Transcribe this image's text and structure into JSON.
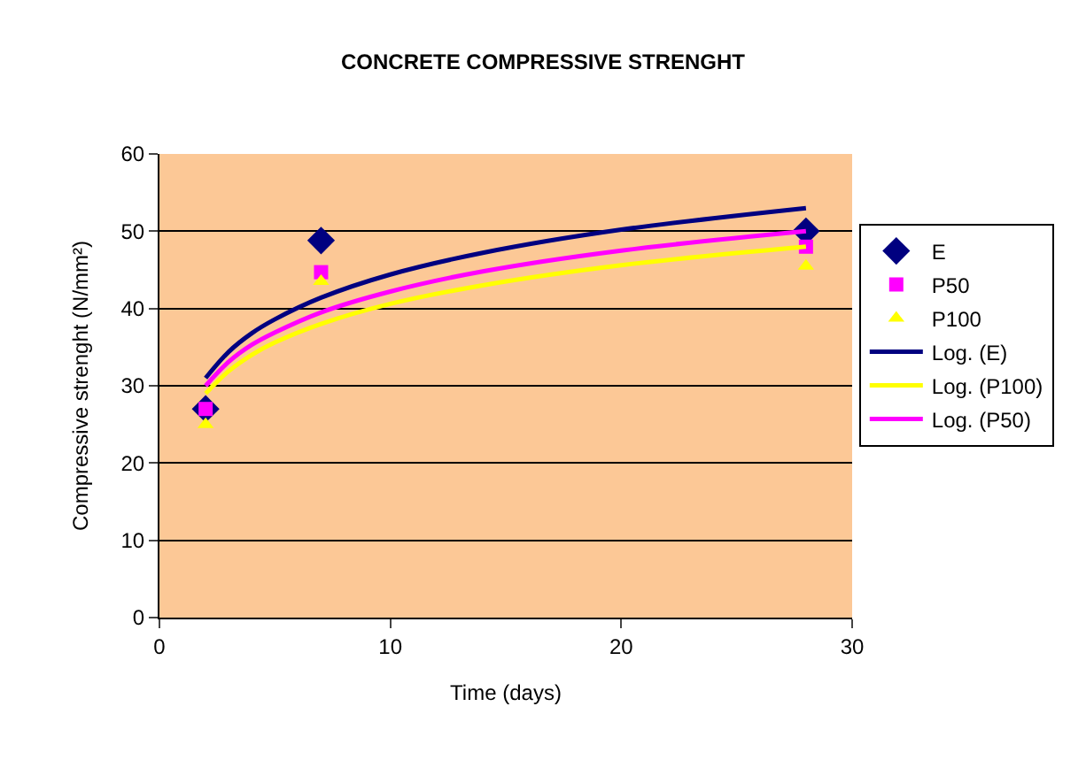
{
  "chart_data": {
    "type": "scatter",
    "title": "CONCRETE COMPRESSIVE STRENGHT",
    "xlabel": "Time (days)",
    "ylabel": "Compressive strenght (N/mm²)",
    "x": [
      2,
      7,
      28
    ],
    "xlim": [
      0,
      30
    ],
    "xticks": [
      0,
      10,
      20,
      30
    ],
    "ylim": [
      0,
      60
    ],
    "yticks": [
      0,
      10,
      20,
      30,
      40,
      50,
      60
    ],
    "grid": "y",
    "legend": "right",
    "series": [
      {
        "name": "E",
        "color": "#000080",
        "marker": "diamond",
        "values": [
          27,
          48.8,
          50
        ]
      },
      {
        "name": "P50",
        "color": "#ff00ff",
        "marker": "square",
        "values": [
          27,
          44.7,
          48
        ]
      },
      {
        "name": "P100",
        "color": "#ffff00",
        "marker": "triangle",
        "values": [
          25,
          43.5,
          45.5
        ]
      },
      {
        "name": "Log. (E)",
        "type": "line",
        "color": "#000080",
        "marker": "none",
        "x": [
          2,
          3,
          4,
          5,
          7,
          10,
          14,
          20,
          28
        ],
        "values": [
          31,
          34.4,
          36.8,
          38.6,
          41.4,
          44.4,
          47.2,
          50.2,
          53
        ]
      },
      {
        "name": "Log. (P100)",
        "type": "line",
        "color": "#ffff00",
        "marker": "none",
        "x": [
          2,
          3,
          4,
          5,
          7,
          10,
          14,
          20,
          28
        ],
        "values": [
          29,
          31.9,
          34.0,
          35.6,
          38.0,
          40.6,
          43.0,
          45.6,
          48
        ]
      },
      {
        "name": "Log. (P50)",
        "type": "line",
        "color": "#ff00ff",
        "marker": "none",
        "x": [
          2,
          3,
          4,
          5,
          7,
          10,
          14,
          20,
          28
        ],
        "values": [
          30,
          33.1,
          35.3,
          36.9,
          39.5,
          42.2,
          44.8,
          47.5,
          50
        ]
      }
    ]
  }
}
